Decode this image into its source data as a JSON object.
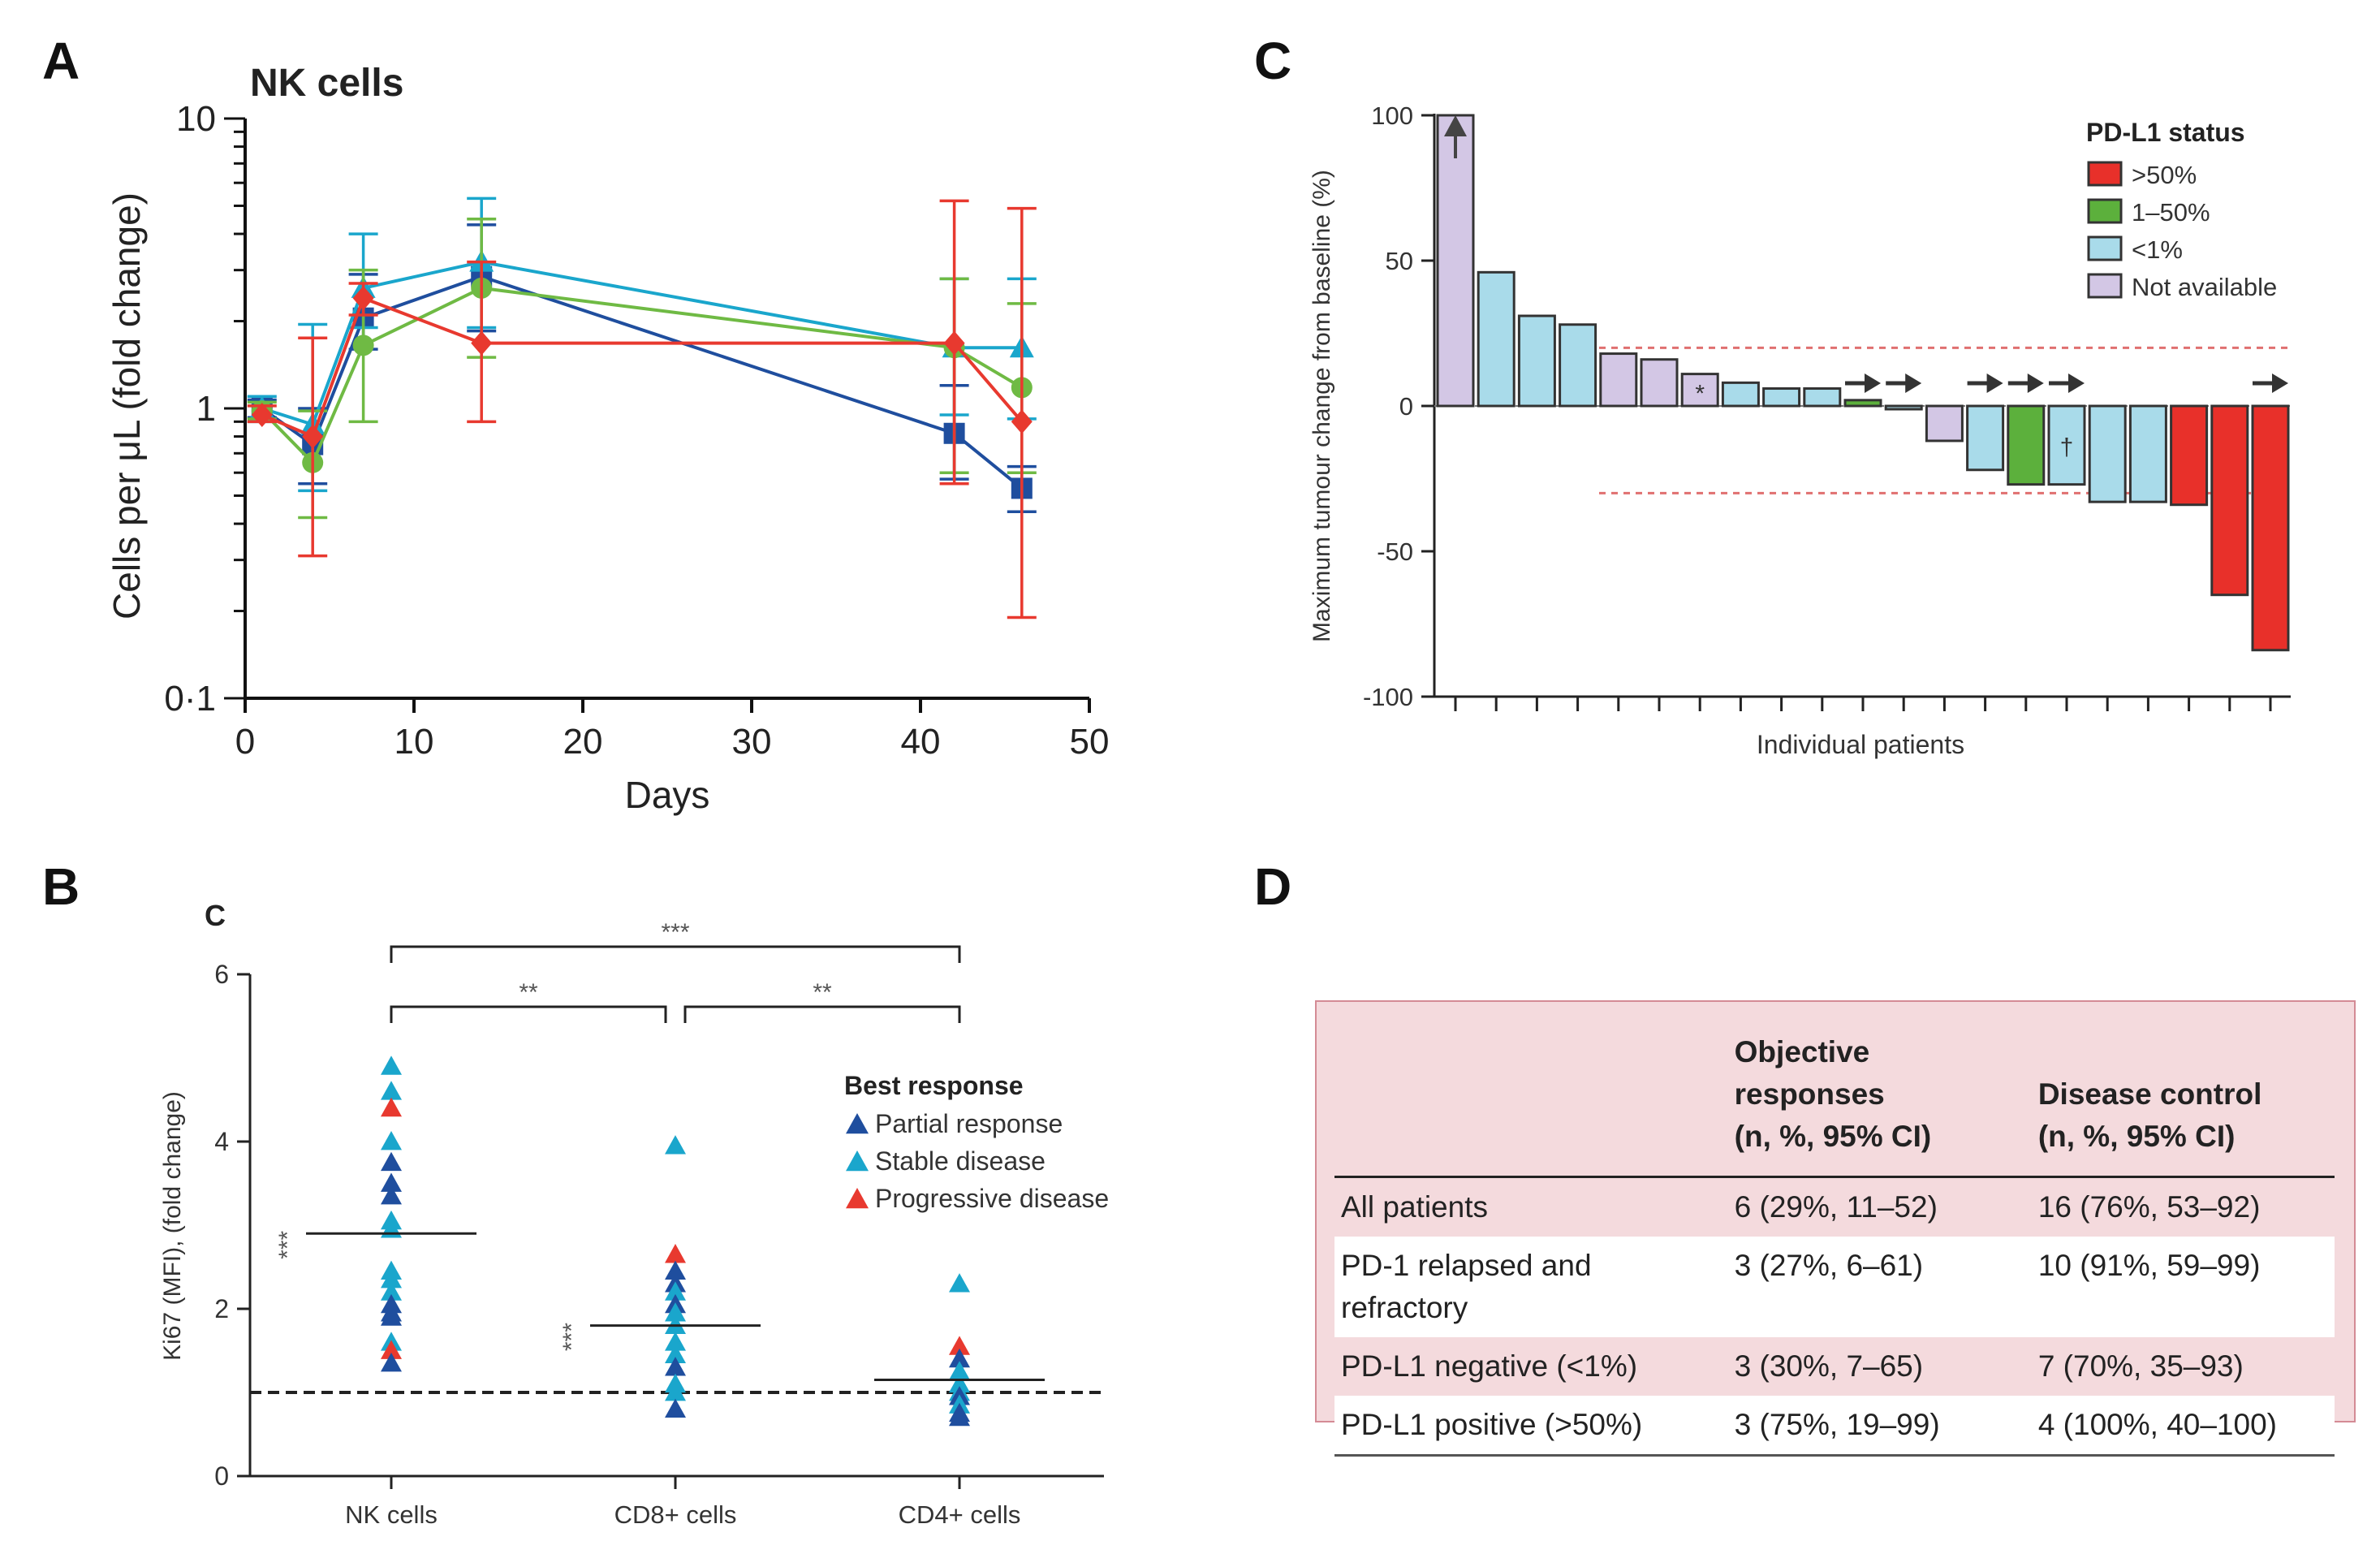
{
  "panels": {
    "a": "A",
    "b": "B",
    "c": "C",
    "d": "D"
  },
  "chart_data": [
    {
      "id": "A",
      "type": "line",
      "title": "NK cells",
      "xlabel": "Days",
      "ylabel": "Cells per μL (fold change)",
      "xlim": [
        0,
        50
      ],
      "ylim": [
        0.1,
        10
      ],
      "yscale": "log",
      "xticks": [
        0,
        10,
        20,
        30,
        40,
        50
      ],
      "ytick_labels": [
        "0·1",
        "1",
        "10"
      ],
      "x": [
        1,
        4,
        7,
        14,
        42,
        46
      ],
      "series": [
        {
          "name": "dark-blue",
          "color": "#1f4e9e",
          "marker": "square",
          "values": [
            1.0,
            0.75,
            2.05,
            2.85,
            0.82,
            0.53
          ],
          "lower": [
            0.93,
            0.55,
            1.6,
            1.85,
            0.57,
            0.44
          ],
          "upper": [
            1.07,
            1.0,
            2.9,
            4.3,
            1.2,
            0.63
          ]
        },
        {
          "name": "light-blue",
          "color": "#1aa6cc",
          "marker": "triangle",
          "values": [
            1.0,
            0.88,
            2.6,
            3.2,
            1.62,
            1.62
          ],
          "lower": [
            0.9,
            0.52,
            1.9,
            1.9,
            0.95,
            0.92
          ],
          "upper": [
            1.1,
            1.95,
            4.0,
            5.3,
            2.8,
            2.8
          ]
        },
        {
          "name": "green",
          "color": "#6fba44",
          "marker": "circle",
          "values": [
            0.98,
            0.65,
            1.65,
            2.6,
            1.62,
            1.18
          ],
          "lower": [
            0.92,
            0.42,
            0.9,
            1.5,
            0.6,
            0.6
          ],
          "upper": [
            1.05,
            0.98,
            3.0,
            4.5,
            2.8,
            2.3
          ]
        },
        {
          "name": "red",
          "color": "#e8392f",
          "marker": "diamond",
          "values": [
            0.95,
            0.8,
            2.4,
            1.68,
            1.68,
            0.9
          ],
          "lower": [
            0.9,
            0.31,
            2.1,
            0.9,
            0.55,
            0.19
          ],
          "upper": [
            1.02,
            1.75,
            2.7,
            3.2,
            5.2,
            4.9
          ]
        }
      ]
    },
    {
      "id": "B",
      "type": "scatter",
      "title": "C",
      "ylabel": "Ki67 (MFI), (fold change)",
      "ylim": [
        0,
        6
      ],
      "yticks": [
        0,
        2,
        4,
        6
      ],
      "baseline": 1,
      "categories": [
        "NK cells",
        "CD8+ cells",
        "CD4+ cells"
      ],
      "legend_title": "Best response",
      "legend": [
        {
          "label": "Partial response",
          "color": "#1f4e9e"
        },
        {
          "label": "Stable disease",
          "color": "#1aa6cc"
        },
        {
          "label": "Progressive disease",
          "color": "#e8392f"
        }
      ],
      "medians": [
        2.9,
        1.8,
        1.15
      ],
      "median_stars": [
        "***",
        "***",
        ""
      ],
      "brackets": [
        {
          "from": "NK cells",
          "to": "CD8+ cells",
          "label": "**"
        },
        {
          "from": "CD8+ cells",
          "to": "CD4+ cells",
          "label": "**"
        },
        {
          "from": "NK cells",
          "to": "CD4+ cells",
          "label": "***"
        }
      ],
      "points": [
        {
          "group": 0,
          "y": 4.9,
          "r": 1
        },
        {
          "group": 0,
          "y": 4.6,
          "r": 1
        },
        {
          "group": 0,
          "y": 4.4,
          "r": 2
        },
        {
          "group": 0,
          "y": 4.0,
          "r": 1
        },
        {
          "group": 0,
          "y": 3.75,
          "r": 0
        },
        {
          "group": 0,
          "y": 3.5,
          "r": 0
        },
        {
          "group": 0,
          "y": 3.35,
          "r": 0
        },
        {
          "group": 0,
          "y": 3.05,
          "r": 1
        },
        {
          "group": 0,
          "y": 2.95,
          "r": 1
        },
        {
          "group": 0,
          "y": 2.45,
          "r": 1
        },
        {
          "group": 0,
          "y": 2.35,
          "r": 1
        },
        {
          "group": 0,
          "y": 2.2,
          "r": 1
        },
        {
          "group": 0,
          "y": 2.05,
          "r": 0
        },
        {
          "group": 0,
          "y": 1.95,
          "r": 0
        },
        {
          "group": 0,
          "y": 1.9,
          "r": 0
        },
        {
          "group": 0,
          "y": 1.6,
          "r": 1
        },
        {
          "group": 0,
          "y": 1.5,
          "r": 2
        },
        {
          "group": 0,
          "y": 1.35,
          "r": 0
        },
        {
          "group": 1,
          "y": 3.95,
          "r": 1
        },
        {
          "group": 1,
          "y": 2.65,
          "r": 2
        },
        {
          "group": 1,
          "y": 2.45,
          "r": 0
        },
        {
          "group": 1,
          "y": 2.3,
          "r": 0
        },
        {
          "group": 1,
          "y": 2.2,
          "r": 1
        },
        {
          "group": 1,
          "y": 2.05,
          "r": 0
        },
        {
          "group": 1,
          "y": 1.95,
          "r": 1
        },
        {
          "group": 1,
          "y": 1.8,
          "r": 1
        },
        {
          "group": 1,
          "y": 1.6,
          "r": 1
        },
        {
          "group": 1,
          "y": 1.45,
          "r": 1
        },
        {
          "group": 1,
          "y": 1.3,
          "r": 0
        },
        {
          "group": 1,
          "y": 1.1,
          "r": 1
        },
        {
          "group": 1,
          "y": 1.0,
          "r": 1
        },
        {
          "group": 1,
          "y": 0.8,
          "r": 0
        },
        {
          "group": 2,
          "y": 2.3,
          "r": 1
        },
        {
          "group": 2,
          "y": 1.55,
          "r": 2
        },
        {
          "group": 2,
          "y": 1.4,
          "r": 0
        },
        {
          "group": 2,
          "y": 1.25,
          "r": 1
        },
        {
          "group": 2,
          "y": 1.1,
          "r": 1
        },
        {
          "group": 2,
          "y": 1.0,
          "r": 1
        },
        {
          "group": 2,
          "y": 0.95,
          "r": 0
        },
        {
          "group": 2,
          "y": 0.85,
          "r": 1
        },
        {
          "group": 2,
          "y": 0.75,
          "r": 0
        },
        {
          "group": 2,
          "y": 0.7,
          "r": 0
        }
      ]
    },
    {
      "id": "C",
      "type": "bar",
      "title": "",
      "xlabel": "Individual patients",
      "ylabel": "Maximum tumour change from baseline (%)",
      "ylim": [
        -100,
        100
      ],
      "yticks": [
        -100,
        -50,
        0,
        50,
        100
      ],
      "thresholds": [
        20,
        -30
      ],
      "legend_title": "PD-L1 status",
      "legend": [
        {
          "label": ">50%",
          "key": "high",
          "color": "#e8302a"
        },
        {
          "label": "1–50%",
          "key": "mid",
          "color": "#5cb03c"
        },
        {
          "label": "<1%",
          "key": "neg",
          "color": "#a9dbea"
        },
        {
          "label": "Not available",
          "key": "na",
          "color": "#d3c7e5"
        }
      ],
      "values": [
        100,
        46,
        31,
        28,
        18,
        16,
        11,
        8,
        6,
        6,
        2,
        0,
        -12,
        -22,
        -27,
        -27,
        -33,
        -33,
        -34,
        -65,
        -84
      ],
      "status": [
        "na",
        "neg",
        "neg",
        "neg",
        "na",
        "na",
        "na",
        "neg",
        "neg",
        "neg",
        "mid",
        "neg",
        "na",
        "neg",
        "mid",
        "neg",
        "neg",
        "neg",
        "high",
        "high",
        "high"
      ],
      "up_arrow_bar": 0,
      "right_arrow_bars": [
        10,
        11,
        13,
        14,
        15,
        20
      ],
      "marks": [
        {
          "bar": 6,
          "label": "*"
        },
        {
          "bar": 15,
          "label": "†"
        }
      ]
    }
  ],
  "table": {
    "col_headers": [
      "Objective responses\n(n, %, 95% CI)",
      "Disease control\n(n, %, 95% CI)"
    ],
    "col_header_lines": [
      [
        "Objective responses",
        "(n, %, 95% CI)"
      ],
      [
        "Disease control",
        "(n, %, 95% CI)"
      ]
    ],
    "rows": [
      {
        "label": "All patients",
        "objective": "6 (29%, 11–52)",
        "control": "16 (76%, 53–92)"
      },
      {
        "label": "PD-1 relapsed and refractory",
        "objective": "3 (27%, 6–61)",
        "control": "10 (91%, 59–99)"
      },
      {
        "label": "PD-L1 negative (<1%)",
        "objective": "3 (30%, 7–65)",
        "control": "7 (70%, 35–93)"
      },
      {
        "label": "PD-L1 positive (>50%)",
        "objective": "3 (75%, 19–99)",
        "control": "4 (100%, 40–100)"
      }
    ]
  }
}
